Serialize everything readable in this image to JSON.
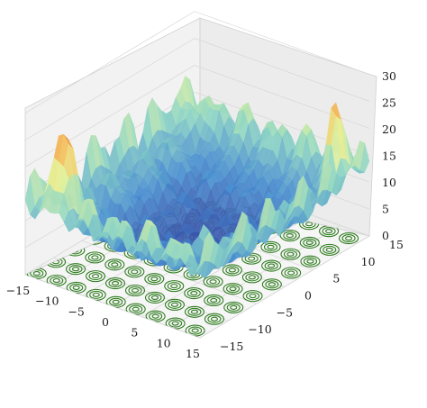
{
  "chart_data": {
    "type": "surface3d",
    "title": "",
    "xlabel": "",
    "ylabel": "",
    "zlabel": "",
    "xlim": [
      -15,
      15
    ],
    "ylim": [
      -15,
      15
    ],
    "zlim": [
      0,
      30
    ],
    "x_ticks": [
      "−15",
      "−10",
      "−5",
      "0",
      "5",
      "10",
      "15"
    ],
    "y_ticks": [
      "15",
      "10",
      "5",
      "0",
      "−5",
      "−10",
      "−15"
    ],
    "z_ticks": [
      "0",
      "5",
      "10",
      "15",
      "20",
      "25",
      "30"
    ],
    "grid": true,
    "colormap": "rainbow (blue-low → red-high)",
    "contour_projection": {
      "plane": "floor",
      "color": "#2f7d1f"
    },
    "notable_peaks": [
      {
        "x": -12,
        "y": -12,
        "z": 25
      },
      {
        "x": -10,
        "y": -12,
        "z": 24
      },
      {
        "x": 12,
        "y": 12,
        "z": 28
      },
      {
        "x": -13,
        "y": 12,
        "z": 18
      },
      {
        "x": 8,
        "y": -8,
        "z": 19
      }
    ],
    "colors": {
      "low": "#3a3f9e",
      "mid": "#7fd0c0",
      "yellow": "#f2f08a",
      "high": "#c8201e",
      "contour": "#2f7d1f"
    }
  }
}
